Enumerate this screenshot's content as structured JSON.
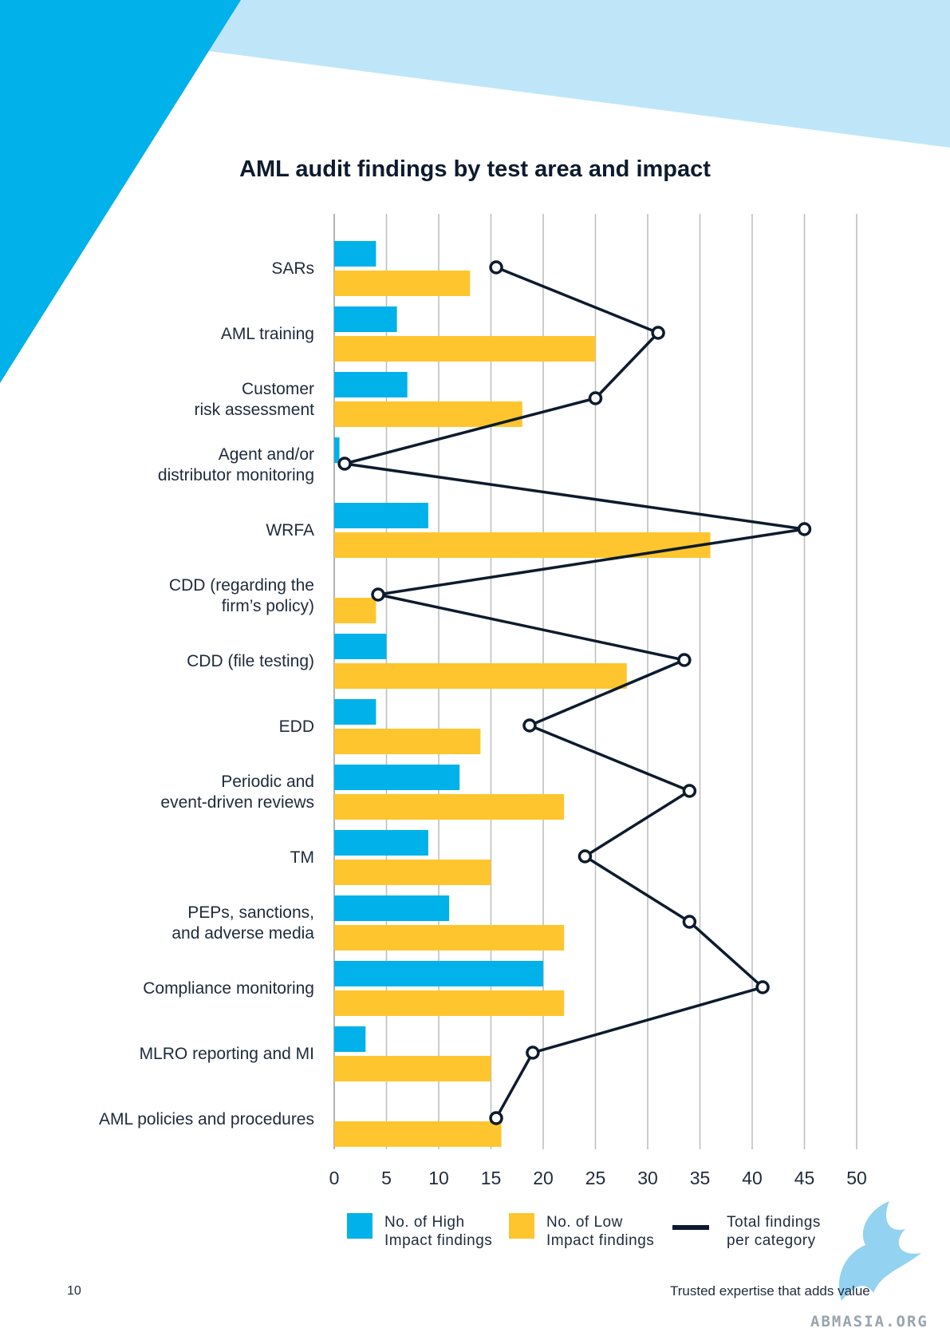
{
  "colors": {
    "high": "#00b1ea",
    "low": "#fec52e",
    "total": "#0d1b2e",
    "grid": "#bcbcbc",
    "decor_dark": "#00b1ea",
    "decor_light": "#bfe6f8"
  },
  "footer": {
    "page_number": "10",
    "tagline": "Trusted expertise that adds value",
    "watermark": "ABMASIA.ORG"
  },
  "legend": {
    "high": "No. of High\nImpact findings",
    "low": "No. of Low\nImpact findings",
    "total": "Total findings\nper category"
  },
  "chart_data": {
    "type": "bar",
    "orientation": "horizontal",
    "title": "AML audit findings by test area and impact",
    "xlim": [
      0,
      50
    ],
    "xticks": [
      0,
      5,
      10,
      15,
      20,
      25,
      30,
      35,
      40,
      45,
      50
    ],
    "grid": true,
    "legend_position": "bottom",
    "categories": [
      "SARs",
      "AML training",
      "Customer\nrisk assessment",
      "Agent and/or\ndistributor monitoring",
      "WRFA",
      "CDD (regarding the\nfirm’s policy)",
      "CDD (file testing)",
      "EDD",
      "Periodic and\nevent-driven reviews",
      "TM",
      "PEPs, sanctions,\nand adverse media",
      "Compliance monitoring",
      "MLRO reporting and MI",
      "AML policies and procedures"
    ],
    "series": [
      {
        "name": "No. of High Impact findings",
        "kind": "bar",
        "values": [
          4,
          6,
          7,
          0.5,
          9,
          0,
          5,
          4,
          12,
          9,
          11,
          20,
          3,
          0
        ]
      },
      {
        "name": "No. of Low Impact findings",
        "kind": "bar",
        "values": [
          13,
          25,
          18,
          0,
          36,
          4,
          28,
          14,
          22,
          15,
          22,
          22,
          15,
          16
        ]
      },
      {
        "name": "Total findings per category",
        "kind": "line",
        "values": [
          15.5,
          31,
          25,
          1,
          45,
          4.2,
          33.5,
          18.7,
          34,
          24,
          34,
          41,
          19,
          15.5
        ]
      }
    ]
  }
}
